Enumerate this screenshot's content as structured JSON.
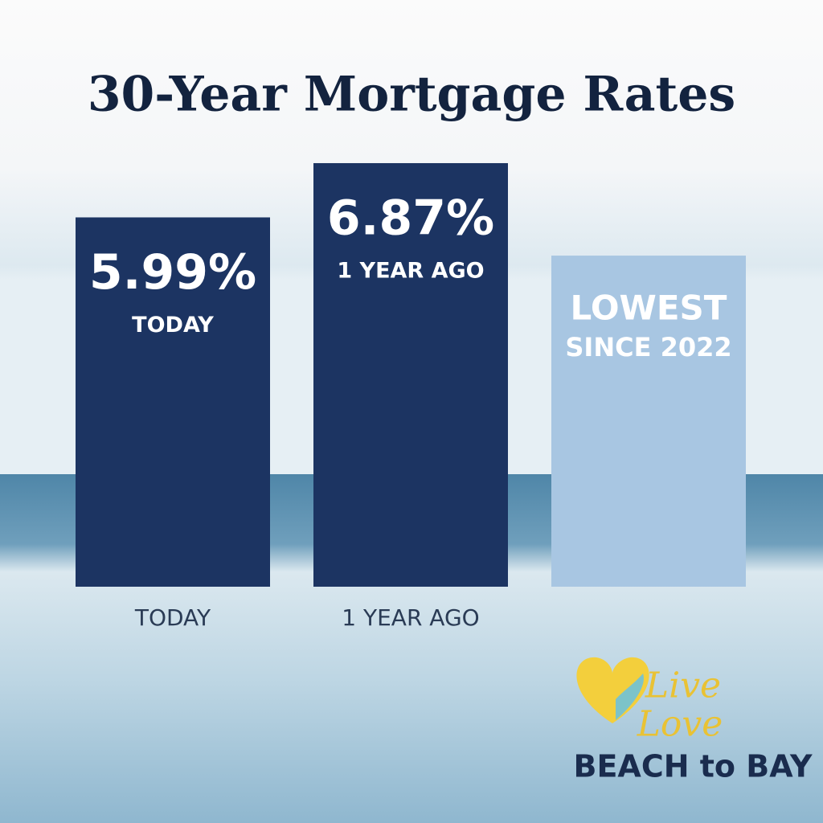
{
  "chart_data": {
    "type": "bar",
    "title": "30-Year Mortgage Rates",
    "categories": [
      "TODAY",
      "1 YEAR AGO",
      null
    ],
    "values": [
      5.99,
      6.87,
      5.37
    ],
    "value_labels": [
      "5.99%",
      "6.87%",
      null
    ],
    "colors": [
      "#1c3462",
      "#1c3462",
      "#a8c6e2"
    ],
    "annotation": [
      "LOWEST",
      "SINCE 2022"
    ],
    "ylim": [
      0,
      7
    ],
    "logo": {
      "line1": "Live",
      "line2": "Love",
      "brand": "BEACH to BAY"
    }
  }
}
